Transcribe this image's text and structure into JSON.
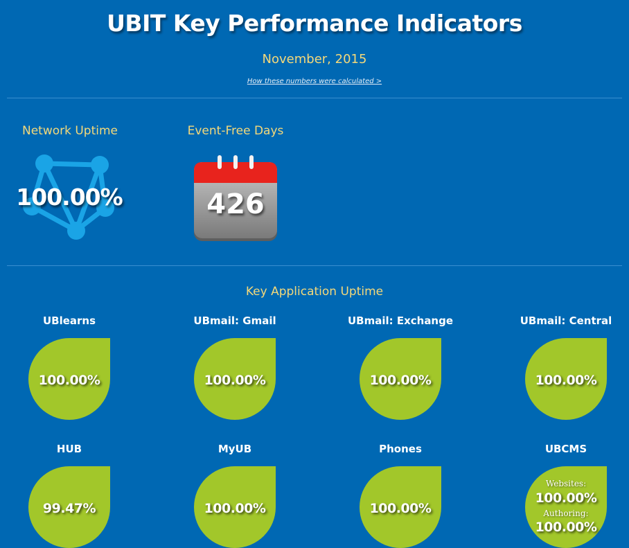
{
  "header": {
    "title": "UBIT Key Performance Indicators",
    "month": "November, 2015",
    "how_link": "How these numbers were calculated >"
  },
  "network": {
    "label": "Network Uptime",
    "value": "100.00%",
    "icon": "network-icon"
  },
  "events": {
    "label": "Event-Free Days",
    "value": "426",
    "icon": "calendar-icon"
  },
  "apps": {
    "label": "Key Application Uptime",
    "items": [
      {
        "name": "UBlearns",
        "value": "100.00%"
      },
      {
        "name": "UBmail: Gmail",
        "value": "100.00%"
      },
      {
        "name": "UBmail: Exchange",
        "value": "100.00%"
      },
      {
        "name": "UBmail: Central",
        "value": "100.00%"
      },
      {
        "name": "HUB",
        "value": "99.47%"
      },
      {
        "name": "MyUB",
        "value": "100.00%"
      },
      {
        "name": "Phones",
        "value": "100.00%"
      },
      {
        "name": "UBCMS",
        "sub1_label": "Websites:",
        "sub1_value": "100.00%",
        "sub2_label": "Authoring:",
        "sub2_value": "100.00%"
      }
    ]
  },
  "colors": {
    "background": "#0068b3",
    "accent_yellow": "#f4d97a",
    "leaf_green": "#a2c72a",
    "calendar_red": "#e8231d"
  }
}
